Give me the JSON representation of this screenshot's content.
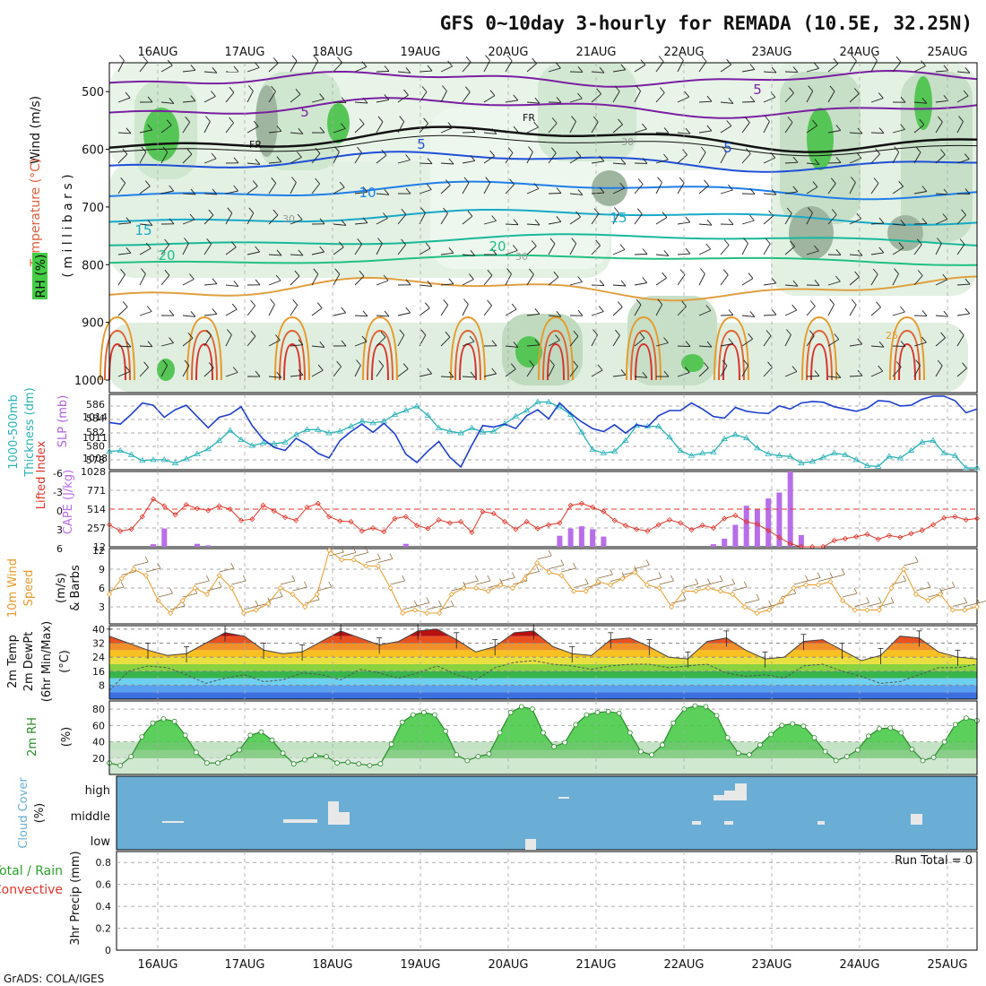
{
  "title": "GFS 0~10day 3-hourly for REMADA (10.5E, 32.25N)",
  "credit": "GrADS: COLA/IGES",
  "dates": [
    "16AUG",
    "17AUG",
    "18AUG",
    "19AUG",
    "20AUG",
    "21AUG",
    "22AUG",
    "23AUG",
    "24AUG",
    "25AUG"
  ],
  "colors": {
    "rh_green": "#3ec83e",
    "slp": "#1f3fd0",
    "thickness": "#2ab3b8",
    "lifted": "#e0362c",
    "cape": "#b86ee8",
    "wind_speed": "#e69a2a",
    "barb": "#8a6a3a",
    "cloud_bg": "#6aaed6",
    "rh2m_line": "#2c8c2c"
  },
  "panels": {
    "profile": {
      "labels": {
        "wind": "Wind (m/s)",
        "temperature": "Temperature (°C)",
        "rh": "RH (%)",
        "ylabel": "( m i l l i b a r s )"
      },
      "yticks": [
        "500",
        "600",
        "700",
        "800",
        "900",
        "1000"
      ],
      "contour_labels": [
        "5",
        "5",
        "5",
        "FR",
        "FR",
        "10",
        "15",
        "15",
        "20",
        "20",
        "30",
        "30",
        "30",
        "25",
        "5"
      ]
    },
    "slp": {
      "label1": "1000-500mb",
      "label2": "Thickness (dm)",
      "label3": "SLP (mb)",
      "left_ticks": [
        "586",
        "584",
        "582",
        "580",
        "578"
      ],
      "right_ticks": [
        "1014",
        "1011",
        "1008"
      ]
    },
    "cape": {
      "label1": "Lifted Index",
      "label2": "CAPE (J/kg)",
      "li_ticks": [
        "-6",
        "-3",
        "0",
        "3",
        "6"
      ],
      "cape_ticks": [
        "1028",
        "771",
        "514",
        "257",
        "12"
      ]
    },
    "wind10": {
      "label1": "10m Wind",
      "label2": "Speed",
      "label3": "& Barbs",
      "unit": "(m/s)",
      "yticks": [
        "12",
        "9",
        "6",
        "3"
      ]
    },
    "temp2m": {
      "label1": "2m Temp",
      "label2": "2m DewPt",
      "label3": "(6hr Min/Max)",
      "unit": "(°C)",
      "yticks": [
        "40",
        "32",
        "24",
        "16",
        "8"
      ]
    },
    "rh2m": {
      "label": "2m RH",
      "unit": "(%)",
      "yticks": [
        "80",
        "60",
        "40",
        "20"
      ]
    },
    "cloud": {
      "label": "Cloud Cover",
      "unit": "(%)",
      "levels": [
        "high",
        "middle",
        "low"
      ]
    },
    "precip": {
      "label1": "Total / Rain",
      "label2": "Convective",
      "unit": "3hr Precip (mm)",
      "yticks": [
        "0.8",
        "0.6",
        "0.4",
        "0.2",
        "0"
      ],
      "run_total": "Run Total = 0"
    }
  },
  "chart_data": [
    {
      "type": "line",
      "title": "SLP (mb)",
      "x": "3-hourly steps 15AUG12Z-25AUG06Z",
      "series": [
        {
          "name": "SLP",
          "values": [
            1012.5,
            1012.3,
            1013.6,
            1015.1,
            1014.8,
            1013.2,
            1014.2,
            1014.8,
            1013.3,
            1011.8,
            1013.2,
            1013.6,
            1014.6,
            1012.1,
            1010.3,
            1009.2,
            1008.8,
            1010.4,
            1009.6,
            1008.4,
            1007.8,
            1010.1,
            1011.3,
            1012.3,
            1011.2,
            1012.4,
            1011.0,
            1008.3,
            1007.2,
            1008.7,
            1010.0,
            1007.9,
            1006.6,
            1009.5,
            1012.1,
            1011.9,
            1012.3,
            1011.7,
            1013.4,
            1014.2,
            1013.0,
            1015.1,
            1013.7,
            1012.6,
            1011.7,
            1011.3,
            1012.2,
            1011.1,
            1012.2,
            1011.9,
            1013.4,
            1014.1,
            1014.1,
            1015.1,
            1014.3,
            1013.3,
            1013.1,
            1014.5,
            1014.0,
            1013.8,
            1013.7,
            1014.7,
            1014.3,
            1015.1,
            1015.3,
            1015.2,
            1014.6,
            1014.3,
            1014.0,
            1014.4,
            1015.4,
            1015.3,
            1014.7,
            1014.8,
            1015.6,
            1016.5,
            1016.3,
            1015.4,
            1013.8,
            1014.3
          ]
        }
      ],
      "ylim": [
        1006,
        1016
      ]
    },
    {
      "type": "line",
      "title": "1000-500mb Thickness (dm)",
      "series": [
        {
          "name": "Thickness",
          "values": [
            580.4,
            580.5,
            580.0,
            579.3,
            579.4,
            579.4,
            579.0,
            579.5,
            580.1,
            580.7,
            581.7,
            582.9,
            581.8,
            581.1,
            581.4,
            581.3,
            581.5,
            582.4,
            583.0,
            583.0,
            582.6,
            582.8,
            583.4,
            584.0,
            583.8,
            584.0,
            584.8,
            585.3,
            585.8,
            584.7,
            583.2,
            582.8,
            582.6,
            583.2,
            582.7,
            582.8,
            583.7,
            584.6,
            585.3,
            586.3,
            586.3,
            585.7,
            584.8,
            582.7,
            580.6,
            580.2,
            580.4,
            581.7,
            583.5,
            583.4,
            583.4,
            582.1,
            580.5,
            579.9,
            580.2,
            580.3,
            581.9,
            582.4,
            582.0,
            580.8,
            580.1,
            579.9,
            579.8,
            579.0,
            579.2,
            579.7,
            580.2,
            580.0,
            579.4,
            578.7,
            578.6,
            579.8,
            579.6,
            580.5,
            581.5,
            581.7,
            580.2,
            579.9,
            578.4,
            578.2
          ]
        }
      ],
      "ylim": [
        578,
        587
      ]
    },
    {
      "type": "bar",
      "title": "CAPE (J/kg)",
      "series": [
        {
          "name": "CAPE",
          "values": [
            0,
            0,
            0,
            40,
            250,
            90,
            60,
            20,
            0,
            0,
            0,
            0,
            0,
            0,
            0,
            0,
            0,
            0,
            0,
            0,
            0,
            0,
            0,
            0,
            0,
            0,
            0,
            30,
            30,
            20,
            0,
            0,
            0,
            0,
            0,
            0,
            0,
            0,
            0,
            0,
            0,
            0,
            0,
            0,
            0,
            0,
            0,
            0,
            0,
            0,
            0,
            0,
            0,
            0,
            0,
            0,
            0,
            0,
            0,
            0,
            0,
            0,
            0,
            0,
            0,
            0,
            0,
            0,
            0,
            0,
            0,
            0,
            0,
            0,
            0,
            0,
            0,
            0,
            0,
            0
          ]
        }
      ],
      "ylim": [
        0,
        1028
      ]
    },
    {
      "type": "line",
      "title": "Lifted Index",
      "series": [
        {
          "name": "LI",
          "values": [
            2.5,
            3.5,
            3.2,
            1.2,
            -1.6,
            -0.5,
            0.9,
            -0.7,
            -0.1,
            0.2,
            -0.5,
            0,
            1.8,
            1.6,
            -0.6,
            0.3,
            1.3,
            1.8,
            -0.3,
            -0.9,
            1.2,
            1.9,
            2.0,
            3.5,
            3.0,
            3.6,
            1.5,
            1.2,
            2.6,
            3.1,
            1.7,
            2.2,
            2.0,
            3.7,
            0.4,
            0.7,
            2.0,
            3.2,
            2.0,
            3.1,
            2.5,
            2.2,
            -0.6,
            -0.9,
            -0.3,
            0.4,
            1.8,
            2.6
          ]
        }
      ],
      "ylim": [
        -6,
        6
      ]
    },
    {
      "type": "line",
      "title": "10m Wind Speed (m/s)",
      "series": [
        {
          "name": "Speed",
          "values": [
            5,
            7.5,
            9,
            8,
            4,
            2,
            4,
            6,
            5,
            8,
            6,
            2,
            2.5,
            3.5,
            6,
            5,
            3,
            5,
            12,
            10.5,
            10.5,
            9.5,
            9.5,
            6,
            2,
            2.5,
            2,
            2,
            5,
            6,
            6,
            5.5,
            6.5,
            6,
            7.5,
            10,
            8.5,
            8,
            5.5,
            5.5,
            7,
            6.5,
            7.5,
            8.5,
            6.5,
            6,
            3,
            5.5,
            5.5,
            6,
            5.5,
            5,
            3,
            2,
            2.5,
            4,
            6,
            6.5,
            6.5,
            7,
            4,
            2.5,
            2.5,
            2.5,
            6,
            9,
            5,
            4,
            5,
            2.5,
            2.5,
            3
          ]
        }
      ],
      "ylim": [
        0,
        12
      ]
    },
    {
      "type": "area",
      "title": "2m Temp / DewPt (°C)",
      "series": [
        {
          "name": "Temp",
          "values": [
            36,
            32,
            28,
            25,
            26,
            32,
            38,
            36,
            28,
            26,
            27,
            33,
            39,
            35,
            31,
            33,
            39,
            40,
            34,
            27,
            30,
            38,
            39,
            30,
            26,
            25,
            34,
            35,
            30,
            24,
            23,
            33,
            35,
            28,
            23,
            24,
            33,
            34,
            28,
            22,
            25,
            36,
            35,
            27,
            24,
            23
          ]
        },
        {
          "name": "DewPt",
          "values": [
            5,
            16,
            19,
            18,
            14,
            9,
            12,
            14,
            10,
            11,
            15,
            14,
            11,
            17,
            15,
            12,
            15,
            19,
            14,
            11,
            18,
            21,
            22,
            20,
            19,
            17,
            19,
            20,
            20,
            18,
            19,
            20,
            15,
            13,
            14,
            12,
            19,
            20,
            16,
            13,
            9,
            10,
            14,
            18,
            18,
            20
          ]
        }
      ],
      "ylim": [
        0,
        42
      ]
    },
    {
      "type": "area",
      "title": "2m RH (%)",
      "series": [
        {
          "name": "RH",
          "values": [
            14,
            11,
            22,
            46,
            63,
            68,
            65,
            48,
            27,
            14,
            14,
            21,
            30,
            48,
            52,
            42,
            26,
            13,
            18,
            23,
            22,
            14,
            15,
            13,
            11,
            13,
            37,
            64,
            73,
            76,
            73,
            53,
            24,
            17,
            22,
            25,
            51,
            76,
            83,
            80,
            51,
            34,
            39,
            61,
            73,
            76,
            77,
            75,
            51,
            28,
            24,
            36,
            63,
            80,
            84,
            83,
            72,
            45,
            26,
            24,
            36,
            49,
            60,
            62,
            59,
            45,
            28,
            17,
            22,
            30,
            47,
            56,
            57,
            51,
            31,
            17,
            21,
            40,
            61,
            69,
            66
          ]
        }
      ],
      "ylim": [
        0,
        90
      ]
    },
    {
      "type": "bar",
      "title": "Cloud Cover",
      "levels": [
        "high",
        "middle",
        "low"
      ],
      "values": []
    },
    {
      "type": "bar",
      "title": "3hr Precip (mm)",
      "values": [],
      "ylim": [
        0,
        0.9
      ]
    }
  ]
}
